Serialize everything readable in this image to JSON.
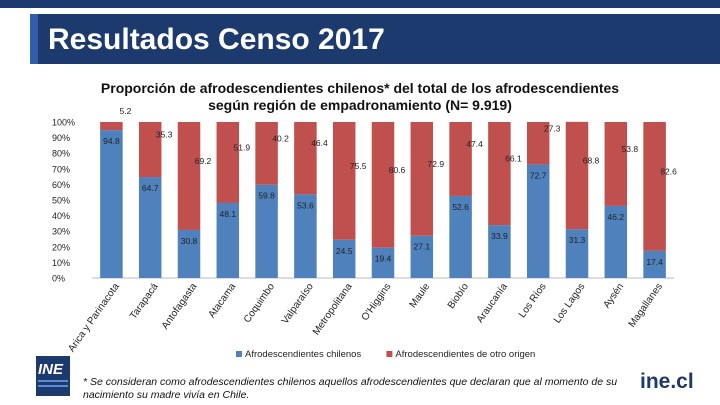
{
  "header": {
    "title": "Resultados Censo 2017"
  },
  "footer": {
    "note_line1": "* Se consideran como afrodescendientes chilenos aquellos afrodescendientes que declaran que al momento de su",
    "note_line2": "nacimiento su madre vivía en Chile.",
    "logo_left": "INE",
    "logo_right": "ine.cl"
  },
  "colors": {
    "banner": "#1d3a6e",
    "series1": "#4f81bd",
    "series2": "#c0504d"
  },
  "chart_data": {
    "type": "bar",
    "stacked": true,
    "title_line1": "Proporción de afrodescendientes chilenos* del total de los afrodescendientes",
    "title_line2": "según región de empadronamiento (N= 9.919)",
    "categories": [
      "Arica y Parinacota",
      "Tarapacá",
      "Antofagasta",
      "Atacama",
      "Coquimbo",
      "Valparaíso",
      "Metropolitana",
      "O'Higgins",
      "Maule",
      "Biobío",
      "Araucanía",
      "Los Ríos",
      "Los Lagos",
      "Aysén",
      "Magallanes"
    ],
    "series": [
      {
        "name": "Afrodescendientes chilenos",
        "values": [
          94.8,
          64.7,
          30.8,
          48.1,
          59.8,
          53.6,
          24.5,
          19.4,
          27.1,
          52.6,
          33.9,
          72.7,
          31.3,
          46.2,
          17.4
        ]
      },
      {
        "name": "Afrodescendientes de otro origen",
        "values": [
          5.2,
          35.3,
          69.2,
          51.9,
          40.2,
          46.4,
          75.5,
          80.6,
          72.9,
          47.4,
          66.1,
          27.3,
          68.8,
          53.8,
          82.6
        ]
      }
    ],
    "ylim": [
      0,
      100
    ],
    "yticks": [
      "0%",
      "10%",
      "20%",
      "30%",
      "40%",
      "50%",
      "60%",
      "70%",
      "80%",
      "90%",
      "100%"
    ],
    "legend_position": "bottom",
    "grid": false
  }
}
